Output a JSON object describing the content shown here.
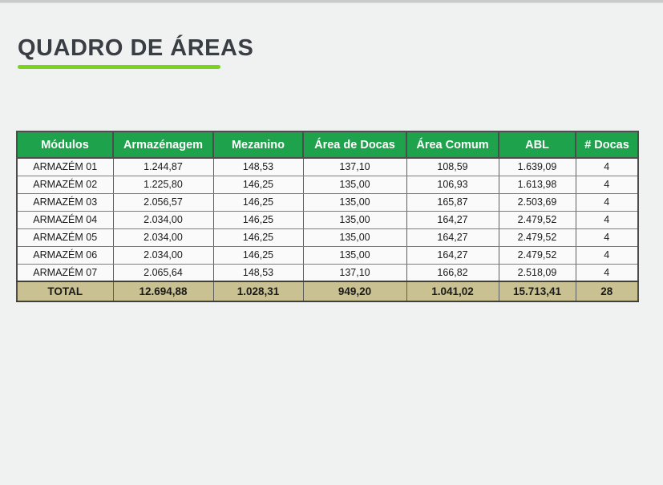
{
  "theme": {
    "page_bg": "#f0f1f1",
    "accent_underline": "#7cd221",
    "header_bg": "#1fa24c",
    "header_text": "#ffffff",
    "total_bg": "#c9c191"
  },
  "page": {
    "title": "QUADRO DE ÁREAS"
  },
  "table": {
    "columns": [
      "Módulos",
      "Armazénagem",
      "Mezanino",
      "Área de Docas",
      "Área Comum",
      "ABL",
      "# Docas"
    ],
    "rows": [
      [
        "ARMAZÉM 01",
        "1.244,87",
        "148,53",
        "137,10",
        "108,59",
        "1.639,09",
        "4"
      ],
      [
        "ARMAZÉM 02",
        "1.225,80",
        "146,25",
        "135,00",
        "106,93",
        "1.613,98",
        "4"
      ],
      [
        "ARMAZÉM 03",
        "2.056,57",
        "146,25",
        "135,00",
        "165,87",
        "2.503,69",
        "4"
      ],
      [
        "ARMAZÉM 04",
        "2.034,00",
        "146,25",
        "135,00",
        "164,27",
        "2.479,52",
        "4"
      ],
      [
        "ARMAZÉM 05",
        "2.034,00",
        "146,25",
        "135,00",
        "164,27",
        "2.479,52",
        "4"
      ],
      [
        "ARMAZÉM 06",
        "2.034,00",
        "146,25",
        "135,00",
        "164,27",
        "2.479,52",
        "4"
      ],
      [
        "ARMAZÉM 07",
        "2.065,64",
        "148,53",
        "137,10",
        "166,82",
        "2.518,09",
        "4"
      ]
    ],
    "total": [
      "TOTAL",
      "12.694,88",
      "1.028,31",
      "949,20",
      "1.041,02",
      "15.713,41",
      "28"
    ]
  }
}
